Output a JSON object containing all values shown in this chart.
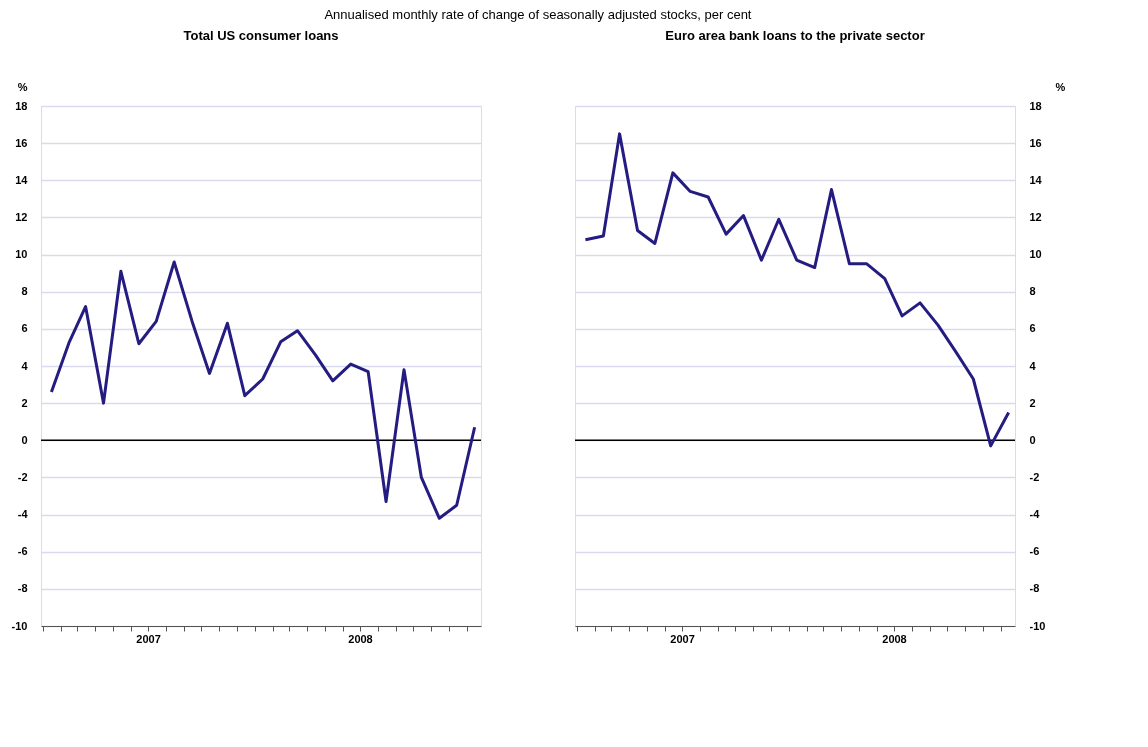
{
  "chart_data": [
    {
      "type": "line",
      "subtitle": "Annualised monthly rate of change of seasonally adjusted stocks, per cent",
      "title": "Total US consumer loans",
      "ylabel": "%",
      "x": [
        "2007-01-15",
        "2007-02-15",
        "2007-03-15",
        "2007-04-15",
        "2007-05-15",
        "2007-06-15",
        "2007-07-15",
        "2007-08-15",
        "2007-09-15",
        "2007-10-15",
        "2007-11-15",
        "2007-12-15",
        "2008-01-15",
        "2008-02-15",
        "2008-03-15",
        "2008-04-15",
        "2008-05-15",
        "2008-06-15",
        "2008-07-15",
        "2008-08-15",
        "2008-09-15",
        "2008-10-15",
        "2008-11-15",
        "2008-12-15",
        "2009-01-15"
      ],
      "series": [
        {
          "color": "#241c80",
          "values": [
            2.6,
            5.3,
            7.2,
            2.0,
            9.1,
            5.2,
            6.4,
            9.6,
            6.4,
            3.6,
            6.3,
            2.4,
            3.3,
            5.3,
            5.9,
            4.6,
            3.2,
            4.1,
            3.7,
            -3.3,
            3.8,
            -2.0,
            -4.2,
            -3.5,
            0.7
          ]
        }
      ],
      "xlim": [
        "2006-12-28",
        "2009-01-26"
      ],
      "xticks": [
        {
          "value": "2007-01-01",
          "label": null
        },
        {
          "value": "2007-02-01",
          "label": null
        },
        {
          "value": "2007-03-01",
          "label": null
        },
        {
          "value": "2007-04-01",
          "label": null
        },
        {
          "value": "2007-05-01",
          "label": null
        },
        {
          "value": "2007-06-01",
          "label": null
        },
        {
          "value": "2007-07-01",
          "label": "2007"
        },
        {
          "value": "2007-08-01",
          "label": null
        },
        {
          "value": "2007-09-01",
          "label": null
        },
        {
          "value": "2007-10-01",
          "label": null
        },
        {
          "value": "2007-11-01",
          "label": null
        },
        {
          "value": "2007-12-01",
          "label": null
        },
        {
          "value": "2008-01-01",
          "label": null
        },
        {
          "value": "2008-02-01",
          "label": null
        },
        {
          "value": "2008-03-01",
          "label": null
        },
        {
          "value": "2008-04-01",
          "label": null
        },
        {
          "value": "2008-05-01",
          "label": null
        },
        {
          "value": "2008-06-01",
          "label": null
        },
        {
          "value": "2008-07-01",
          "label": "2008"
        },
        {
          "value": "2008-08-01",
          "label": null
        },
        {
          "value": "2008-09-01",
          "label": null
        },
        {
          "value": "2008-10-01",
          "label": null
        },
        {
          "value": "2008-11-01",
          "label": null
        },
        {
          "value": "2008-12-01",
          "label": null
        },
        {
          "value": "2009-01-01",
          "label": null
        }
      ],
      "ylim": [
        -10,
        18
      ],
      "yticks": [
        -10,
        -8,
        -6,
        -4,
        -2,
        0,
        2,
        4,
        6,
        8,
        10,
        12,
        14,
        16,
        18
      ],
      "ref_lines": [
        {
          "axis": "y",
          "value": 0,
          "color": "#000000"
        }
      ],
      "grid": "y",
      "marker": "none",
      "line_style": "solid"
    },
    {
      "type": "line",
      "title": "Euro area bank loans to the private sector",
      "y2label": "%",
      "x": [
        "2007-01-15",
        "2007-02-15",
        "2007-03-15",
        "2007-04-15",
        "2007-05-15",
        "2007-06-15",
        "2007-07-15",
        "2007-08-15",
        "2007-09-15",
        "2007-10-15",
        "2007-11-15",
        "2007-12-15",
        "2008-01-15",
        "2008-02-15",
        "2008-03-15",
        "2008-04-15",
        "2008-05-15",
        "2008-06-15",
        "2008-07-15",
        "2008-08-15",
        "2008-09-15",
        "2008-10-15",
        "2008-11-15",
        "2008-12-15",
        "2009-01-15"
      ],
      "series": [
        {
          "color": "#241c80",
          "axis": "y2",
          "values": [
            10.8,
            11.0,
            16.5,
            11.3,
            10.6,
            14.4,
            13.4,
            13.1,
            11.1,
            12.1,
            9.7,
            11.9,
            9.7,
            9.3,
            13.5,
            9.5,
            9.5,
            8.7,
            6.7,
            7.4,
            6.2,
            4.8,
            3.3,
            -0.3,
            1.5
          ]
        }
      ],
      "xlim": [
        "2006-12-28",
        "2009-01-26"
      ],
      "xticks": [
        {
          "value": "2007-01-01",
          "label": null
        },
        {
          "value": "2007-02-01",
          "label": null
        },
        {
          "value": "2007-03-01",
          "label": null
        },
        {
          "value": "2007-04-01",
          "label": null
        },
        {
          "value": "2007-05-01",
          "label": null
        },
        {
          "value": "2007-06-01",
          "label": null
        },
        {
          "value": "2007-07-01",
          "label": "2007"
        },
        {
          "value": "2007-08-01",
          "label": null
        },
        {
          "value": "2007-09-01",
          "label": null
        },
        {
          "value": "2007-10-01",
          "label": null
        },
        {
          "value": "2007-11-01",
          "label": null
        },
        {
          "value": "2007-12-01",
          "label": null
        },
        {
          "value": "2008-01-01",
          "label": null
        },
        {
          "value": "2008-02-01",
          "label": null
        },
        {
          "value": "2008-03-01",
          "label": null
        },
        {
          "value": "2008-04-01",
          "label": null
        },
        {
          "value": "2008-05-01",
          "label": null
        },
        {
          "value": "2008-06-01",
          "label": null
        },
        {
          "value": "2008-07-01",
          "label": "2008"
        },
        {
          "value": "2008-08-01",
          "label": null
        },
        {
          "value": "2008-09-01",
          "label": null
        },
        {
          "value": "2008-10-01",
          "label": null
        },
        {
          "value": "2008-11-01",
          "label": null
        },
        {
          "value": "2008-12-01",
          "label": null
        },
        {
          "value": "2009-01-01",
          "label": null
        }
      ],
      "y2lim": [
        -10,
        18
      ],
      "y2ticks": [
        -10,
        -8,
        -6,
        -4,
        -2,
        0,
        2,
        4,
        6,
        8,
        10,
        12,
        14,
        16,
        18
      ],
      "ref_lines": [
        {
          "axis": "y2",
          "value": 0,
          "color": "#000000"
        }
      ],
      "grid": "y",
      "marker": "none",
      "line_style": "solid"
    }
  ]
}
